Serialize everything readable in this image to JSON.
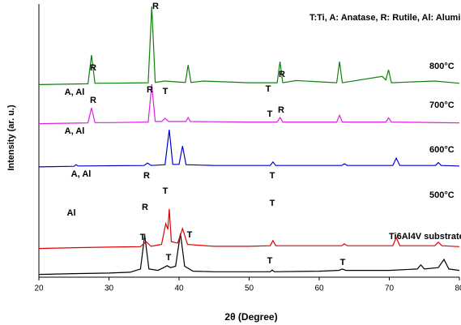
{
  "chart_data": {
    "type": "line",
    "xlabel": "2θ (Degree)",
    "ylabel": "Intensity (ar. u.)",
    "legend_text": "T:Ti, A: Anatase, R: Rutile, Al: Alumina",
    "xlim": [
      20,
      80
    ],
    "xticks": [
      20,
      30,
      40,
      50,
      60,
      70,
      80
    ],
    "ylim": [
      0,
      100
    ],
    "series": [
      {
        "name": "Ti6Al4V substrate",
        "color": "#000000",
        "x": [
          20,
          25,
          30,
          33,
          34.5,
          35.1,
          35.7,
          37,
          37.8,
          38.3,
          38.8,
          39.5,
          40.2,
          40.8,
          42,
          45,
          50,
          53,
          53.3,
          53.6,
          60,
          62.8,
          63.3,
          63.8,
          70,
          74,
          74.5,
          75,
          77,
          77.8,
          78.5,
          80
        ],
        "values": [
          1,
          1.3,
          1.5,
          1.8,
          3,
          15.4,
          3,
          2.5,
          3.5,
          4.2,
          3.5,
          4,
          16,
          4,
          2.2,
          2,
          2,
          2,
          2.6,
          2,
          2.2,
          2.5,
          3,
          2.5,
          2.5,
          3,
          4.5,
          3,
          3.5,
          6.5,
          3,
          2.5
        ]
      },
      {
        "name": "500°C",
        "color": "#e00000",
        "x": [
          20,
          25,
          30,
          34.5,
          35.3,
          36,
          37.5,
          38.1,
          38.4,
          38.6,
          38.9,
          39.8,
          40.5,
          41.2,
          45,
          50,
          53,
          53.4,
          53.8,
          60,
          63.2,
          63.6,
          64,
          70.5,
          71,
          71.5,
          76.5,
          77,
          77.5,
          80
        ],
        "values": [
          10.5,
          10.8,
          11,
          11.2,
          13,
          11.3,
          12,
          19.6,
          17.5,
          25,
          13,
          12.5,
          17.8,
          12,
          11.3,
          11.3,
          11.5,
          13.4,
          11.5,
          11.5,
          11.5,
          12.2,
          11.5,
          11.5,
          14.5,
          11.5,
          11.5,
          12.8,
          11.5,
          11.2
        ]
      },
      {
        "name": "600°C",
        "color": "#0000d0",
        "x": [
          20,
          25,
          25.3,
          25.6,
          30,
          35,
          35.5,
          36,
          38,
          38.6,
          39.1,
          40,
          40.5,
          41,
          45,
          53,
          53.4,
          53.8,
          63.2,
          63.6,
          64,
          70.5,
          71,
          71.5,
          76.6,
          77,
          77.4,
          80
        ],
        "values": [
          40.4,
          40.6,
          41.2,
          40.7,
          40.8,
          40.9,
          41.8,
          40.9,
          41.2,
          54,
          41.3,
          41.3,
          48,
          41.2,
          40.9,
          40.9,
          42.2,
          40.9,
          40.9,
          41.5,
          40.9,
          40.9,
          43.6,
          40.9,
          40.9,
          42,
          40.9,
          40.7
        ]
      },
      {
        "name": "700°C",
        "color": "#e020e0",
        "x": [
          20,
          27,
          27.5,
          28,
          30,
          35.6,
          36.1,
          36.6,
          37.5,
          38,
          38.5,
          41,
          41.3,
          41.6,
          50,
          54,
          54.4,
          54.8,
          62.5,
          62.9,
          63.3,
          69.5,
          69.9,
          70.3,
          80
        ],
        "values": [
          56.2,
          56.5,
          62,
          56.6,
          56.6,
          56.8,
          70.6,
          57,
          57,
          58.2,
          57,
          57,
          58.5,
          57,
          56.8,
          56.8,
          58.5,
          56.8,
          56.8,
          59.3,
          56.8,
          56.8,
          58.3,
          56.8,
          56.5
        ]
      },
      {
        "name": "800°C",
        "color": "#108010",
        "x": [
          20,
          27,
          27.5,
          28,
          30,
          35.6,
          36.1,
          36.6,
          37.9,
          40.9,
          41.3,
          41.7,
          43.5,
          50,
          54,
          54.4,
          54.8,
          56.7,
          62.5,
          62.9,
          63.3,
          69,
          69.5,
          69.9,
          70.3,
          76.5,
          80
        ],
        "values": [
          70.5,
          70.8,
          81.3,
          71,
          71,
          71.2,
          99.1,
          71.3,
          71.8,
          71.3,
          77.7,
          71.3,
          71.8,
          71.2,
          71.2,
          78.9,
          71.2,
          72,
          71.2,
          78.9,
          71.2,
          73.5,
          72.2,
          75.9,
          71.2,
          71.8,
          71
        ]
      }
    ],
    "annotations": [
      "A, Al",
      "R",
      "R",
      "T",
      "T",
      "R",
      "A, Al",
      "R",
      "R",
      "T",
      "R",
      "A, Al",
      "R",
      "T",
      "Al",
      "R",
      "T",
      "T",
      "T",
      "T",
      "T",
      "T",
      "T"
    ]
  }
}
